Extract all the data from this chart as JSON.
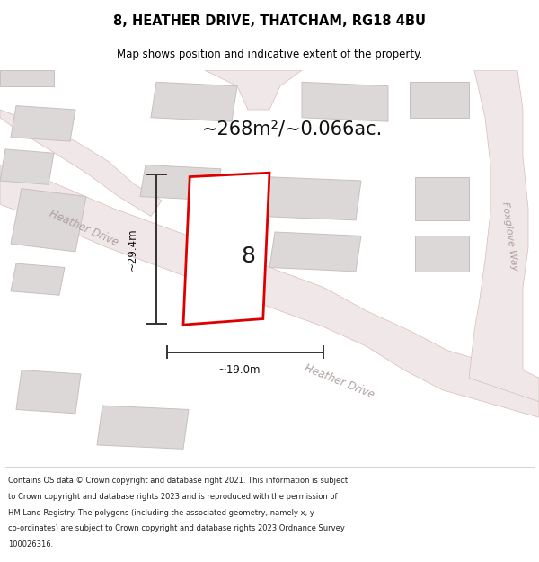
{
  "title": "8, HEATHER DRIVE, THATCHAM, RG18 4BU",
  "subtitle": "Map shows position and indicative extent of the property.",
  "area_text": "~268m²/~0.066ac.",
  "dim_width": "~19.0m",
  "dim_height": "~29.4m",
  "property_number": "8",
  "footer_lines": [
    "Contains OS data © Crown copyright and database right 2021. This information is subject",
    "to Crown copyright and database rights 2023 and is reproduced with the permission of",
    "HM Land Registry. The polygons (including the associated geometry, namely x, y",
    "co-ordinates) are subject to Crown copyright and database rights 2023 Ordnance Survey",
    "100026316."
  ],
  "map_bg": "#f7f3f3",
  "road_fill": "#f0e8e8",
  "road_edge": "#dbbaba",
  "building_fill": "#ddd8d8",
  "building_edge": "#c8c0c0",
  "property_fill": "#ffffff",
  "property_edge": "#dd0000",
  "dim_color": "#333333",
  "road_label_color": "#b0a0a0",
  "title_color": "#000000",
  "footer_color": "#222222",
  "title_fontsize": 10.5,
  "subtitle_fontsize": 8.5,
  "area_fontsize": 15,
  "dim_fontsize": 8.5,
  "road_label_fontsize": 8.5,
  "number_fontsize": 18,
  "footer_fontsize": 6.0
}
